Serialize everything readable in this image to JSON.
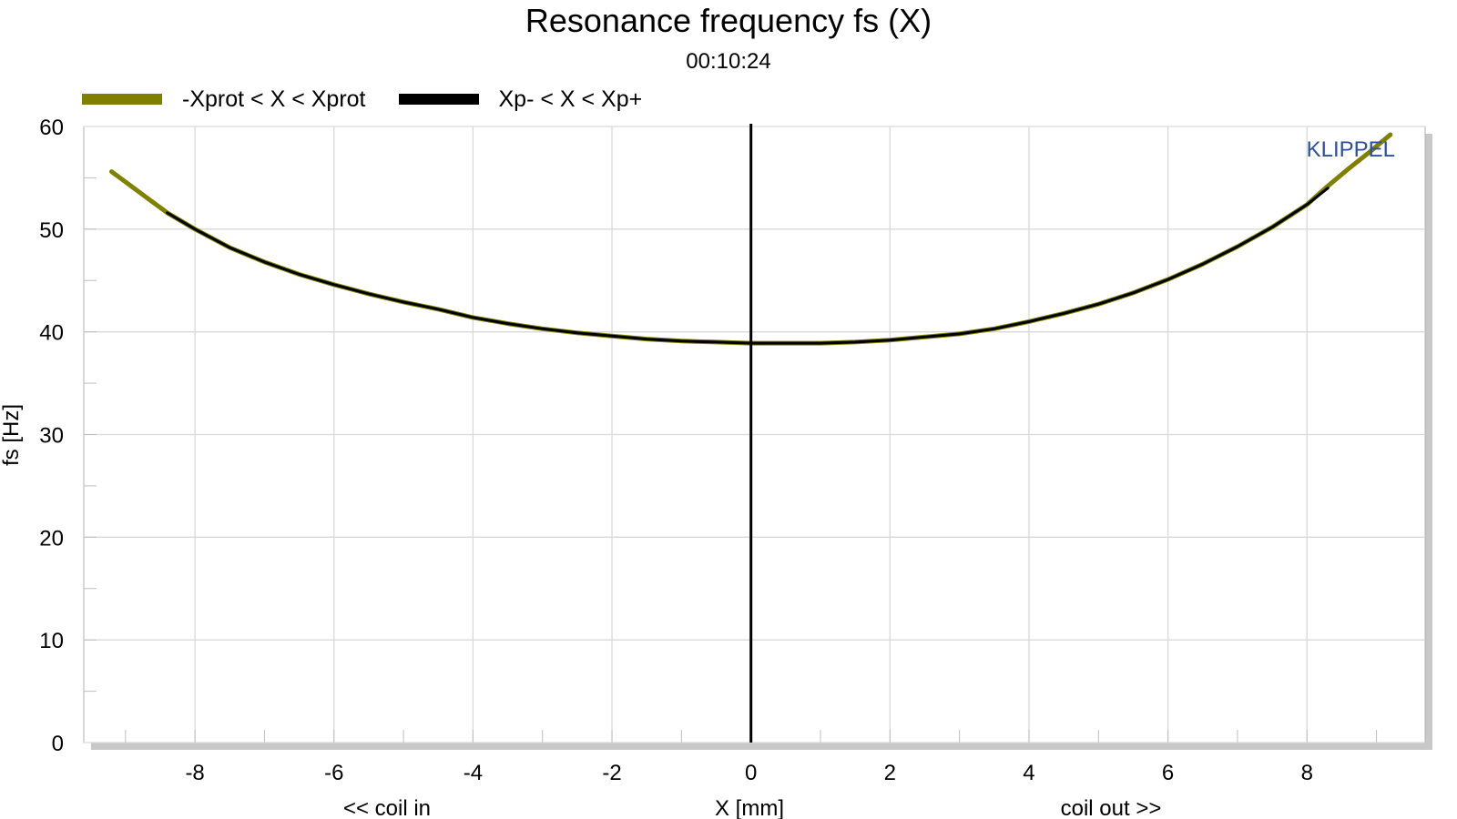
{
  "chart_data": {
    "type": "line",
    "title": "Resonance frequency fs (X)",
    "subtitle": "00:10:24",
    "xlabel": "X [mm]",
    "ylabel": "fs [Hz]",
    "x_annotations": {
      "left": "<< coil in",
      "right": "coil out >>"
    },
    "brand": "KLIPPEL",
    "xlim": [
      -9.6,
      9.7
    ],
    "ylim": [
      0,
      60
    ],
    "xticks": [
      -8,
      -6,
      -4,
      -2,
      0,
      2,
      4,
      6,
      8
    ],
    "yticks": [
      0,
      10,
      20,
      30,
      40,
      50,
      60
    ],
    "grid": true,
    "legend_position": "top-left",
    "vline_x": 0,
    "series": [
      {
        "name": "-Xprot < X < Xprot",
        "color": "#808000",
        "x": [
          -9.2,
          -9.0,
          -8.8,
          -8.6,
          -8.4,
          -8.0,
          -7.5,
          -7.0,
          -6.5,
          -6.0,
          -5.5,
          -5.0,
          -4.5,
          -4.0,
          -3.5,
          -3.0,
          -2.5,
          -2.0,
          -1.5,
          -1.0,
          -0.5,
          0.0,
          0.5,
          1.0,
          1.5,
          2.0,
          2.5,
          3.0,
          3.5,
          4.0,
          4.5,
          5.0,
          5.5,
          6.0,
          6.5,
          7.0,
          7.5,
          8.0,
          8.3,
          8.6,
          8.9,
          9.2
        ],
        "y": [
          55.6,
          54.6,
          53.6,
          52.6,
          51.6,
          50.0,
          48.2,
          46.8,
          45.6,
          44.6,
          43.7,
          42.9,
          42.2,
          41.4,
          40.8,
          40.3,
          39.9,
          39.6,
          39.3,
          39.1,
          39.0,
          38.9,
          38.9,
          38.9,
          39.0,
          39.2,
          39.5,
          39.8,
          40.3,
          41.0,
          41.8,
          42.7,
          43.8,
          45.1,
          46.6,
          48.3,
          50.2,
          52.4,
          54.2,
          55.9,
          57.5,
          59.2
        ]
      },
      {
        "name": "Xp- < X < Xp+",
        "color": "#000000",
        "x": [
          -8.4,
          -8.0,
          -7.5,
          -7.0,
          -6.5,
          -6.0,
          -5.5,
          -5.0,
          -4.5,
          -4.0,
          -3.5,
          -3.0,
          -2.5,
          -2.0,
          -1.5,
          -1.0,
          -0.5,
          0.0,
          0.5,
          1.0,
          1.5,
          2.0,
          2.5,
          3.0,
          3.5,
          4.0,
          4.5,
          5.0,
          5.5,
          6.0,
          6.5,
          7.0,
          7.5,
          8.0,
          8.3
        ],
        "y": [
          51.6,
          50.0,
          48.2,
          46.8,
          45.6,
          44.6,
          43.7,
          42.9,
          42.2,
          41.4,
          40.8,
          40.3,
          39.9,
          39.6,
          39.3,
          39.1,
          39.0,
          38.9,
          38.9,
          38.9,
          39.0,
          39.2,
          39.5,
          39.8,
          40.3,
          41.0,
          41.8,
          42.7,
          43.8,
          45.1,
          46.6,
          48.3,
          50.2,
          52.4,
          54.0
        ]
      }
    ]
  }
}
